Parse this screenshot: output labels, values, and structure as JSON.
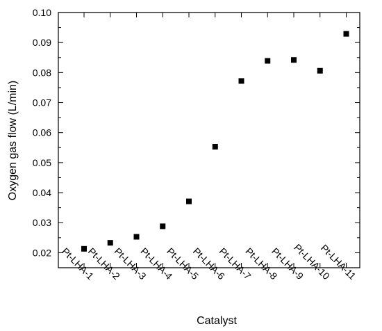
{
  "chart_data": {
    "type": "scatter",
    "title": "",
    "xlabel": "Catalyst",
    "ylabel": "Oxygen gas flow (L/min)",
    "categories": [
      "Pt-LHA-1",
      "Pt-LHA-2",
      "Pt-LHA-3",
      "Pt-LHA-4",
      "Pt-LHA-5",
      "Pt-LHA-6",
      "Pt-LHA-7",
      "Pt-LHA-8",
      "Pt-LHA-9",
      "Pt-LHA-10",
      "Pt-LHA-11"
    ],
    "values": [
      0.0213,
      0.0233,
      0.0253,
      0.0288,
      0.0371,
      0.0553,
      0.0772,
      0.0839,
      0.0842,
      0.0806,
      0.0929
    ],
    "ylim": [
      0.015,
      0.1
    ],
    "yticks": [
      "0.02",
      "0.03",
      "0.04",
      "0.05",
      "0.06",
      "0.07",
      "0.08",
      "0.09",
      "0.10"
    ],
    "grid": false,
    "legend": "none",
    "marker_color": "#000000"
  }
}
